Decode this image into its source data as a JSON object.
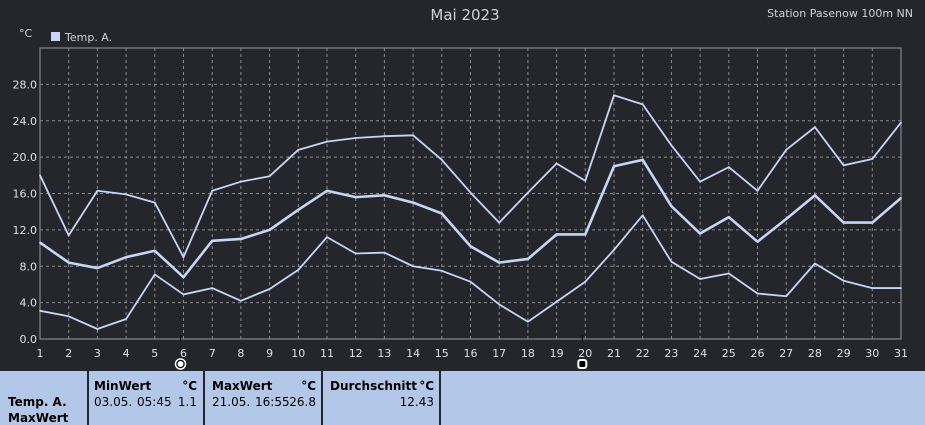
{
  "chart": {
    "title": "Mai 2023",
    "station": "Station Pasenow 100m NN",
    "unit": "°C",
    "legend_label": "Temp. A.",
    "line_color": "#c9d5f5",
    "legend_color": "#c9d5f5",
    "grid_color": "#8a8c90"
  },
  "chart_data": {
    "type": "line",
    "x": [
      1,
      2,
      3,
      4,
      5,
      6,
      7,
      8,
      9,
      10,
      11,
      12,
      13,
      14,
      15,
      16,
      17,
      18,
      19,
      20,
      21,
      22,
      23,
      24,
      25,
      26,
      27,
      28,
      29,
      30,
      31
    ],
    "xlim": [
      1,
      31
    ],
    "ylim": [
      0,
      32
    ],
    "yticks": [
      "0.0",
      "4.0",
      "8.0",
      "12.0",
      "16.0",
      "20.0",
      "24.0",
      "28.0"
    ],
    "ytick_values": [
      0,
      4,
      8,
      12,
      16,
      20,
      24,
      28
    ],
    "grid": true,
    "legend": "top-left",
    "series": [
      {
        "role": "max",
        "values": [
          18.0,
          11.4,
          16.3,
          15.9,
          15.0,
          9.0,
          16.3,
          17.3,
          17.9,
          20.8,
          21.7,
          22.1,
          22.3,
          22.4,
          19.7,
          16.1,
          12.8,
          16.1,
          19.3,
          17.4,
          26.8,
          25.8,
          21.3,
          17.3,
          18.9,
          16.3,
          20.8,
          23.3,
          19.1,
          19.8,
          23.8
        ]
      },
      {
        "role": "mean",
        "values": [
          10.6,
          8.4,
          7.8,
          9.0,
          9.7,
          6.8,
          10.8,
          11.0,
          12.0,
          14.2,
          16.3,
          15.6,
          15.8,
          15.0,
          13.8,
          10.2,
          8.4,
          8.8,
          11.5,
          11.5,
          19.0,
          19.7,
          14.6,
          11.6,
          13.4,
          10.7,
          13.2,
          15.8,
          12.8,
          12.8,
          15.5
        ]
      },
      {
        "role": "min",
        "values": [
          3.1,
          2.5,
          1.1,
          2.2,
          7.1,
          4.9,
          5.6,
          4.2,
          5.5,
          7.6,
          11.2,
          9.4,
          9.5,
          8.0,
          7.5,
          6.3,
          3.8,
          1.9,
          4.1,
          6.3,
          9.8,
          13.6,
          8.5,
          6.6,
          7.2,
          5.0,
          4.7,
          8.3,
          6.4,
          5.6,
          5.6
        ]
      }
    ],
    "markers": [
      {
        "day": 6,
        "icon": "full-moon-icon"
      },
      {
        "day": 20,
        "icon": "new-moon-icon"
      }
    ]
  },
  "stats": {
    "row_label_1": "Temp. A.",
    "row_label_2": "MaxWert",
    "min_header": "MinWert",
    "min_unit": "°C",
    "min_date": "03.05.",
    "min_time": "05:45",
    "min_value": "1.1",
    "max_header": "MaxWert",
    "max_unit": "°C",
    "max_date": "21.05.",
    "max_time": "16:55",
    "max_value": "26.8",
    "avg_header": "Durchschnitt",
    "avg_unit": "°C",
    "avg_value": "12.43",
    "panel_color": "#b3c8e9"
  }
}
